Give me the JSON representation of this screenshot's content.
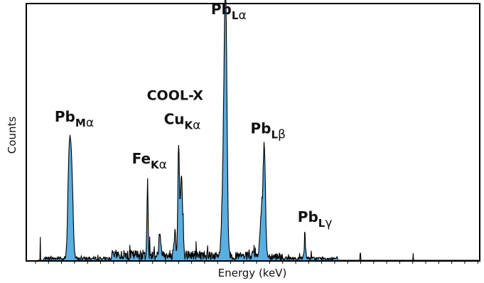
{
  "chart_data": {
    "type": "area",
    "xlabel": "Energy (keV)",
    "ylabel": "Counts",
    "xlim": [
      0,
      15
    ],
    "ylim": [
      0,
      100
    ],
    "grid": false,
    "legend": "none",
    "fill_color": "#5aaee0",
    "line_color": "#000000",
    "peaks": [
      {
        "x": 2.3,
        "y": 50,
        "w": 0.09
      },
      {
        "x": 2.2,
        "y": 12,
        "w": 0.05
      },
      {
        "x": 2.42,
        "y": 10,
        "w": 0.05
      },
      {
        "x": 6.4,
        "y": 32,
        "w": 0.03
      },
      {
        "x": 7.05,
        "y": 8,
        "w": 0.05
      },
      {
        "x": 8.05,
        "y": 47,
        "w": 0.04
      },
      {
        "x": 8.2,
        "y": 34,
        "w": 0.06
      },
      {
        "x": 7.85,
        "y": 10,
        "w": 0.05
      },
      {
        "x": 10.55,
        "y": 95,
        "w": 0.07
      },
      {
        "x": 10.45,
        "y": 40,
        "w": 0.09
      },
      {
        "x": 12.6,
        "y": 45,
        "w": 0.06
      },
      {
        "x": 12.45,
        "y": 18,
        "w": 0.08
      },
      {
        "x": 14.75,
        "y": 5,
        "w": 0.05
      }
    ],
    "spikes": [
      {
        "x": 0.7,
        "y": 10
      },
      {
        "x": 14.75,
        "y": 6
      },
      {
        "x": 15.1,
        "y": 3
      },
      {
        "x": 17.7,
        "y": 3
      },
      {
        "x": 20.5,
        "y": 3
      }
    ],
    "annotations": [
      {
        "base": "Pb",
        "sub": "M",
        "greek": "α",
        "x": 2.3,
        "y": 57
      },
      {
        "base": "Fe",
        "sub": "K",
        "greek": "α",
        "x": 6.4,
        "y": 39
      },
      {
        "over": "COOL-X",
        "base": "Cu",
        "sub": "K",
        "greek": "α",
        "x": 8.1,
        "y": 56
      },
      {
        "base": "Pb",
        "sub": "L",
        "greek": "α",
        "x": 10.6,
        "y": 103
      },
      {
        "base": "Pb",
        "sub": "L",
        "greek": "β",
        "x": 12.7,
        "y": 52
      },
      {
        "base": "Pb",
        "sub": "L",
        "greek": "γ",
        "x": 15.2,
        "y": 14
      }
    ]
  }
}
